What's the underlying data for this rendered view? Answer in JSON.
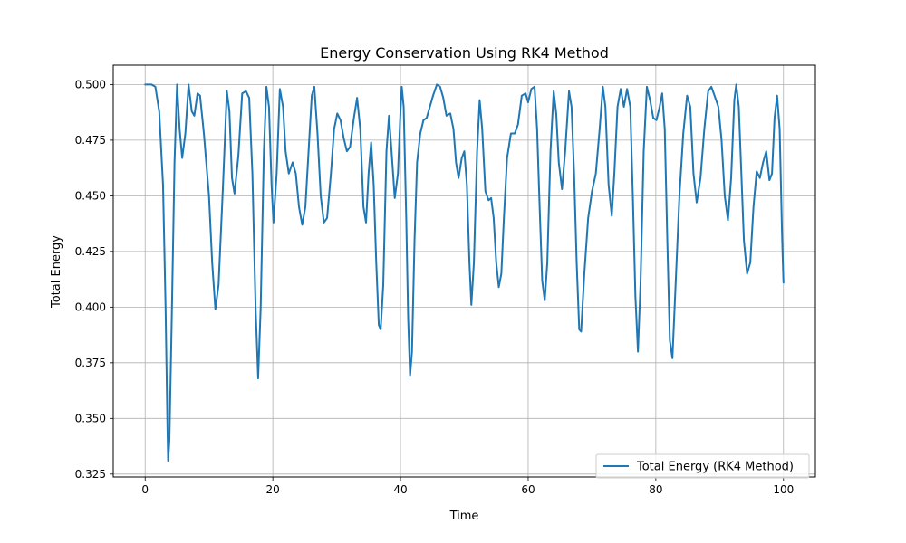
{
  "chart_data": {
    "type": "line",
    "title": "Energy Conservation Using RK4 Method",
    "xlabel": "Time",
    "ylabel": "Total Energy",
    "xlim": [
      -5,
      105
    ],
    "ylim": [
      0.3237,
      0.5087
    ],
    "xticks": [
      0,
      20,
      40,
      60,
      80,
      100
    ],
    "xtick_labels": [
      "0",
      "20",
      "40",
      "60",
      "80",
      "100"
    ],
    "yticks": [
      0.325,
      0.35,
      0.375,
      0.4,
      0.425,
      0.45,
      0.475,
      0.5
    ],
    "ytick_labels": [
      "0.325",
      "0.350",
      "0.375",
      "0.400",
      "0.425",
      "0.450",
      "0.475",
      "0.500"
    ],
    "grid": true,
    "legend_position": "lower-right",
    "series": [
      {
        "name": "Total Energy (RK4 Method)",
        "color": "#1f77b4",
        "points": [
          [
            0,
            0.5
          ],
          [
            1.0,
            0.5
          ],
          [
            1.6,
            0.499
          ],
          [
            2.2,
            0.488
          ],
          [
            2.8,
            0.455
          ],
          [
            3.2,
            0.4
          ],
          [
            3.5,
            0.345
          ],
          [
            3.6,
            0.331
          ],
          [
            3.8,
            0.34
          ],
          [
            4.2,
            0.4
          ],
          [
            4.6,
            0.465
          ],
          [
            5.0,
            0.5
          ],
          [
            5.4,
            0.48
          ],
          [
            5.8,
            0.467
          ],
          [
            6.3,
            0.478
          ],
          [
            6.8,
            0.5
          ],
          [
            7.3,
            0.488
          ],
          [
            7.7,
            0.486
          ],
          [
            8.2,
            0.496
          ],
          [
            8.6,
            0.495
          ],
          [
            9.2,
            0.478
          ],
          [
            10.0,
            0.45
          ],
          [
            10.5,
            0.42
          ],
          [
            11.0,
            0.399
          ],
          [
            11.5,
            0.41
          ],
          [
            12.2,
            0.455
          ],
          [
            12.8,
            0.497
          ],
          [
            13.2,
            0.488
          ],
          [
            13.6,
            0.458
          ],
          [
            14.0,
            0.451
          ],
          [
            14.6,
            0.468
          ],
          [
            15.2,
            0.496
          ],
          [
            15.8,
            0.497
          ],
          [
            16.3,
            0.494
          ],
          [
            16.8,
            0.46
          ],
          [
            17.3,
            0.4
          ],
          [
            17.7,
            0.368
          ],
          [
            18.1,
            0.4
          ],
          [
            18.6,
            0.47
          ],
          [
            19.0,
            0.499
          ],
          [
            19.4,
            0.49
          ],
          [
            19.8,
            0.455
          ],
          [
            20.1,
            0.438
          ],
          [
            20.6,
            0.46
          ],
          [
            21.1,
            0.498
          ],
          [
            21.6,
            0.49
          ],
          [
            22.0,
            0.47
          ],
          [
            22.5,
            0.46
          ],
          [
            23.1,
            0.465
          ],
          [
            23.6,
            0.46
          ],
          [
            24.1,
            0.445
          ],
          [
            24.6,
            0.437
          ],
          [
            25.1,
            0.445
          ],
          [
            25.6,
            0.47
          ],
          [
            26.1,
            0.495
          ],
          [
            26.5,
            0.499
          ],
          [
            27.0,
            0.478
          ],
          [
            27.5,
            0.45
          ],
          [
            28.0,
            0.438
          ],
          [
            28.5,
            0.44
          ],
          [
            29.1,
            0.46
          ],
          [
            29.6,
            0.48
          ],
          [
            30.1,
            0.487
          ],
          [
            30.6,
            0.484
          ],
          [
            31.1,
            0.476
          ],
          [
            31.6,
            0.47
          ],
          [
            32.1,
            0.472
          ],
          [
            32.7,
            0.485
          ],
          [
            33.2,
            0.494
          ],
          [
            33.7,
            0.48
          ],
          [
            34.2,
            0.445
          ],
          [
            34.6,
            0.438
          ],
          [
            35.0,
            0.46
          ],
          [
            35.4,
            0.474
          ],
          [
            35.8,
            0.455
          ],
          [
            36.2,
            0.42
          ],
          [
            36.6,
            0.392
          ],
          [
            36.9,
            0.39
          ],
          [
            37.3,
            0.41
          ],
          [
            37.8,
            0.47
          ],
          [
            38.2,
            0.486
          ],
          [
            38.6,
            0.47
          ],
          [
            39.1,
            0.449
          ],
          [
            39.6,
            0.46
          ],
          [
            40.0,
            0.488
          ],
          [
            40.2,
            0.499
          ],
          [
            40.5,
            0.49
          ],
          [
            40.9,
            0.44
          ],
          [
            41.2,
            0.395
          ],
          [
            41.5,
            0.369
          ],
          [
            41.8,
            0.38
          ],
          [
            42.2,
            0.43
          ],
          [
            42.6,
            0.465
          ],
          [
            43.1,
            0.478
          ],
          [
            43.6,
            0.484
          ],
          [
            44.1,
            0.485
          ],
          [
            44.6,
            0.49
          ],
          [
            45.1,
            0.495
          ],
          [
            45.7,
            0.5
          ],
          [
            46.2,
            0.499
          ],
          [
            46.7,
            0.494
          ],
          [
            47.2,
            0.486
          ],
          [
            47.8,
            0.487
          ],
          [
            48.3,
            0.48
          ],
          [
            48.7,
            0.465
          ],
          [
            49.1,
            0.458
          ],
          [
            49.6,
            0.467
          ],
          [
            50.0,
            0.47
          ],
          [
            50.4,
            0.455
          ],
          [
            50.8,
            0.42
          ],
          [
            51.1,
            0.401
          ],
          [
            51.5,
            0.42
          ],
          [
            52.0,
            0.47
          ],
          [
            52.4,
            0.493
          ],
          [
            52.8,
            0.48
          ],
          [
            53.3,
            0.452
          ],
          [
            53.8,
            0.448
          ],
          [
            54.2,
            0.449
          ],
          [
            54.6,
            0.44
          ],
          [
            55.0,
            0.42
          ],
          [
            55.4,
            0.409
          ],
          [
            55.8,
            0.415
          ],
          [
            56.2,
            0.44
          ],
          [
            56.7,
            0.467
          ],
          [
            57.3,
            0.478
          ],
          [
            57.9,
            0.478
          ],
          [
            58.4,
            0.482
          ],
          [
            59.0,
            0.495
          ],
          [
            59.6,
            0.496
          ],
          [
            60.0,
            0.492
          ],
          [
            60.5,
            0.498
          ],
          [
            61.0,
            0.499
          ],
          [
            61.4,
            0.48
          ],
          [
            61.8,
            0.445
          ],
          [
            62.2,
            0.412
          ],
          [
            62.6,
            0.403
          ],
          [
            63.0,
            0.42
          ],
          [
            63.5,
            0.47
          ],
          [
            64.0,
            0.497
          ],
          [
            64.4,
            0.487
          ],
          [
            64.8,
            0.465
          ],
          [
            65.3,
            0.453
          ],
          [
            65.8,
            0.47
          ],
          [
            66.4,
            0.497
          ],
          [
            66.8,
            0.49
          ],
          [
            67.2,
            0.46
          ],
          [
            67.6,
            0.42
          ],
          [
            68.0,
            0.39
          ],
          [
            68.3,
            0.389
          ],
          [
            68.8,
            0.415
          ],
          [
            69.4,
            0.44
          ],
          [
            70.0,
            0.452
          ],
          [
            70.6,
            0.46
          ],
          [
            71.2,
            0.48
          ],
          [
            71.7,
            0.499
          ],
          [
            72.1,
            0.49
          ],
          [
            72.6,
            0.455
          ],
          [
            73.1,
            0.441
          ],
          [
            73.5,
            0.46
          ],
          [
            74.0,
            0.49
          ],
          [
            74.5,
            0.498
          ],
          [
            75.0,
            0.49
          ],
          [
            75.5,
            0.498
          ],
          [
            76.0,
            0.49
          ],
          [
            76.4,
            0.45
          ],
          [
            76.8,
            0.405
          ],
          [
            77.2,
            0.38
          ],
          [
            77.6,
            0.41
          ],
          [
            78.1,
            0.47
          ],
          [
            78.6,
            0.499
          ],
          [
            79.1,
            0.493
          ],
          [
            79.6,
            0.485
          ],
          [
            80.1,
            0.484
          ],
          [
            80.6,
            0.49
          ],
          [
            81.0,
            0.496
          ],
          [
            81.4,
            0.48
          ],
          [
            81.8,
            0.43
          ],
          [
            82.2,
            0.385
          ],
          [
            82.6,
            0.377
          ],
          [
            83.1,
            0.41
          ],
          [
            83.7,
            0.45
          ],
          [
            84.3,
            0.478
          ],
          [
            84.9,
            0.495
          ],
          [
            85.4,
            0.49
          ],
          [
            85.9,
            0.46
          ],
          [
            86.4,
            0.447
          ],
          [
            87.0,
            0.458
          ],
          [
            87.6,
            0.48
          ],
          [
            88.2,
            0.497
          ],
          [
            88.7,
            0.499
          ],
          [
            89.2,
            0.495
          ],
          [
            89.8,
            0.49
          ],
          [
            90.3,
            0.475
          ],
          [
            90.8,
            0.45
          ],
          [
            91.3,
            0.439
          ],
          [
            91.8,
            0.458
          ],
          [
            92.3,
            0.493
          ],
          [
            92.6,
            0.5
          ],
          [
            93.0,
            0.49
          ],
          [
            93.4,
            0.46
          ],
          [
            93.8,
            0.43
          ],
          [
            94.3,
            0.415
          ],
          [
            94.8,
            0.42
          ],
          [
            95.3,
            0.445
          ],
          [
            95.8,
            0.461
          ],
          [
            96.3,
            0.458
          ],
          [
            96.8,
            0.465
          ],
          [
            97.3,
            0.47
          ],
          [
            97.8,
            0.457
          ],
          [
            98.2,
            0.46
          ],
          [
            98.6,
            0.485
          ],
          [
            99.0,
            0.495
          ],
          [
            99.4,
            0.48
          ],
          [
            99.8,
            0.43
          ],
          [
            100.0,
            0.411
          ]
        ]
      }
    ]
  }
}
